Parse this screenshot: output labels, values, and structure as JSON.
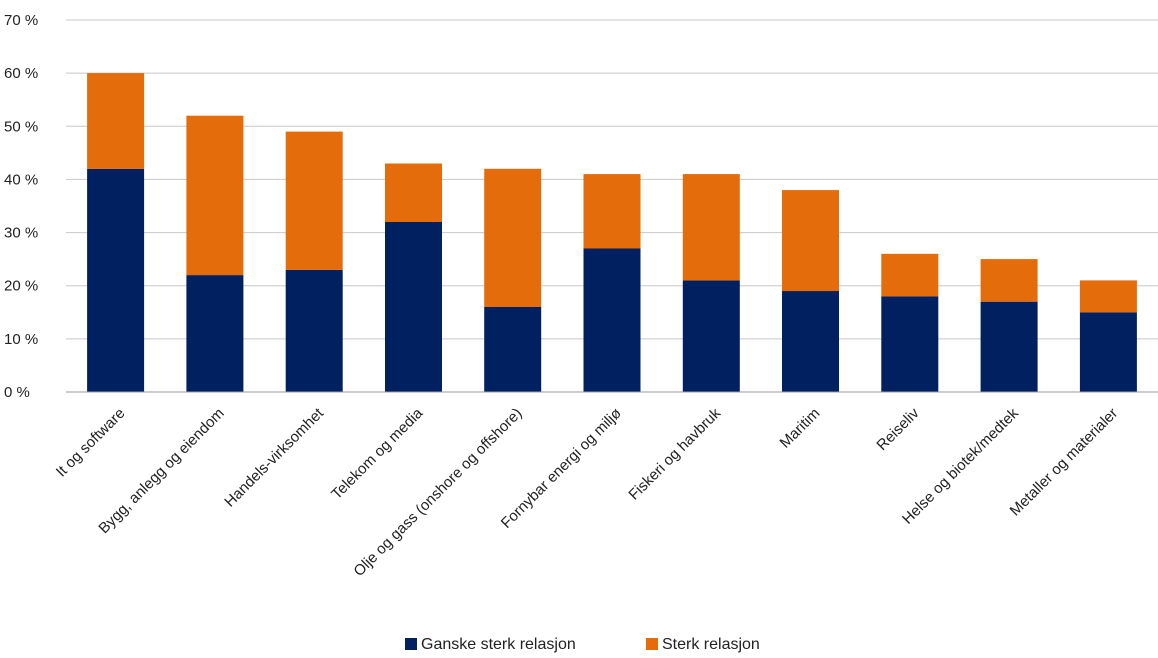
{
  "chart_data": {
    "type": "bar",
    "stacked": true,
    "title": "",
    "xlabel": "",
    "ylabel": "",
    "ylim": [
      0,
      70
    ],
    "y_ticks": [
      "0 %",
      "10 %",
      "20 %",
      "30 %",
      "40 %",
      "50 %",
      "60 %",
      "70 %"
    ],
    "y_tick_values": [
      0,
      10,
      20,
      30,
      40,
      50,
      60,
      70
    ],
    "grid": true,
    "legend_position": "bottom",
    "categories": [
      "It og software",
      "Bygg, anlegg og eiendom",
      "Handels-virksomhet",
      "Telekom og media",
      "Olje og gass (onshore og offshore)",
      "Fornybar energi og miljø",
      "Fiskeri og havbruk",
      "Maritim",
      "Reiseliv",
      "Helse og biotek/medtek",
      "Metaller og materialer"
    ],
    "series": [
      {
        "name": "Ganske sterk relasjon",
        "color": "#002060",
        "values": [
          42,
          22,
          23,
          32,
          16,
          27,
          21,
          19,
          18,
          17,
          15
        ]
      },
      {
        "name": "Sterk relasjon",
        "color": "#E46C0A",
        "values": [
          18,
          30,
          26,
          11,
          26,
          14,
          20,
          19,
          8,
          8,
          6
        ]
      }
    ]
  }
}
